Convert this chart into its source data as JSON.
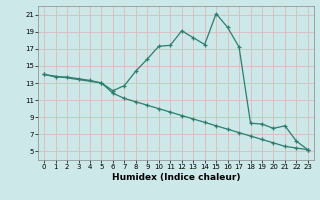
{
  "xlabel": "Humidex (Indice chaleur)",
  "bg_color": "#cce8e8",
  "grid_color": "#aacccc",
  "line_color": "#2e7d6e",
  "marker": "+",
  "xlim": [
    -0.5,
    23.5
  ],
  "ylim": [
    4,
    22
  ],
  "yticks": [
    5,
    7,
    9,
    11,
    13,
    15,
    17,
    19,
    21
  ],
  "xticks": [
    0,
    1,
    2,
    3,
    4,
    5,
    6,
    7,
    8,
    9,
    10,
    11,
    12,
    13,
    14,
    15,
    16,
    17,
    18,
    19,
    20,
    21,
    22,
    23
  ],
  "curve1_x": [
    0,
    1,
    2,
    3,
    4,
    5,
    6,
    7,
    8,
    9,
    10,
    11,
    12,
    13,
    14,
    15,
    16,
    17,
    18,
    19,
    20,
    21,
    22,
    23
  ],
  "curve1_y": [
    14.0,
    13.7,
    13.7,
    13.5,
    13.3,
    13.0,
    12.1,
    12.7,
    14.4,
    15.8,
    17.3,
    17.4,
    19.1,
    18.3,
    17.5,
    21.1,
    19.5,
    17.2,
    8.3,
    8.2,
    7.7,
    8.0,
    6.2,
    5.2
  ],
  "curve2_x": [
    0,
    5,
    6,
    7,
    8,
    9,
    10,
    11,
    12,
    13,
    14,
    15,
    16,
    17,
    18,
    19,
    20,
    21,
    22,
    23
  ],
  "curve2_y": [
    14.0,
    13.0,
    11.8,
    11.2,
    10.8,
    10.4,
    10.0,
    9.6,
    9.2,
    8.8,
    8.4,
    8.0,
    7.6,
    7.2,
    6.8,
    6.4,
    6.0,
    5.6,
    5.4,
    5.2
  ]
}
